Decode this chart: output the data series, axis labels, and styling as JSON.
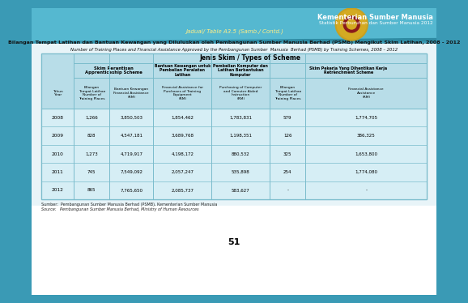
{
  "title_jadual": "Jadual/ Table A3.5 (Samb./ Contd.)",
  "title_ms": "Bilangan Tempat Latihan dan Bantuan Kewangan yang Diluluskan oleh Pembangunan Sumber Manusia Berhad (PSMB) Mengikut Skim Latihan, 2008 - 2012",
  "title_en": "Number of Training Places and Financial Assistance Approved by the Pembangunan Sumber  Manusia  Berhad (PSMB) by Training Schemes, 2008 – 2012",
  "header_types": "Jenis Skim / Types of Scheme",
  "year_header": "Tahun\nYear",
  "years": [
    "2008",
    "2009",
    "2010",
    "2011",
    "2012"
  ],
  "data": [
    [
      "1,266",
      "3,850,503",
      "1,854,462",
      "1,783,831",
      "579",
      "1,774,705"
    ],
    [
      "828",
      "4,547,181",
      "3,689,768",
      "1,198,351",
      "126",
      "386,325"
    ],
    [
      "1,273",
      "4,719,917",
      "4,198,172",
      "880,532",
      "325",
      "1,653,800"
    ],
    [
      "745",
      "7,549,092",
      "2,057,247",
      "535,898",
      "254",
      "1,774,080"
    ],
    [
      "865",
      "7,765,650",
      "2,085,737",
      "583,627",
      "-",
      "-"
    ]
  ],
  "source_ms": "Sumber:  Pembangunan Sumber Manusia Berhad (PSMB), Kementerian Sumber Manusia",
  "source_en": "Source:   Pembangunan Sumber Manusia Berhad, Ministry of Human Resources",
  "page_number": "51",
  "top_teal": "#3a9ab5",
  "light_teal_header": "#b8dde8",
  "light_teal_row": "#d6eef5",
  "border_color": "#7bbccc",
  "white": "#ffffff"
}
